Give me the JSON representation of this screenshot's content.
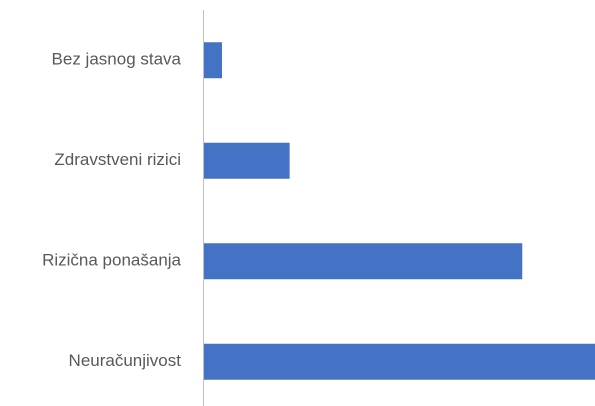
{
  "chart_data": {
    "type": "bar",
    "orientation": "horizontal",
    "categories": [
      "Bez jasnog stava",
      "Zdravstveni rizici",
      "Rizična ponašanja",
      "Neuračunjivost"
    ],
    "values": [
      4.6,
      21.9,
      81.4,
      100
    ],
    "color": "#4472c4"
  }
}
